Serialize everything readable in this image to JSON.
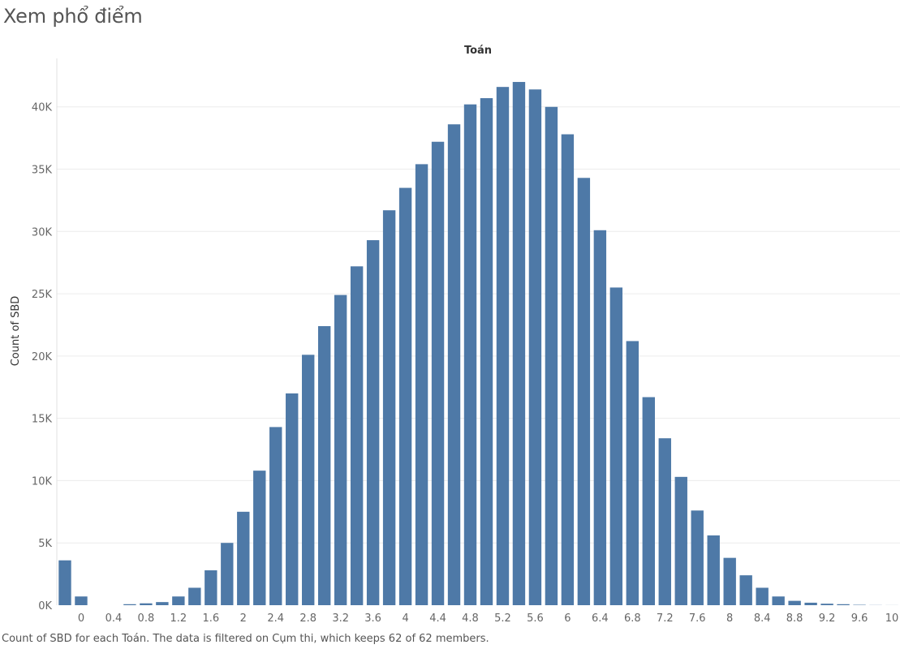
{
  "page_title": "Xem phổ điểm",
  "footer_note": "Count of SBD for each Toán. The data is filtered on Cụm thi, which keeps 62 of 62 members.",
  "chart_data": {
    "type": "bar",
    "title": "Toán",
    "xlabel": "",
    "ylabel": "Count of SBD",
    "ylim": [
      0,
      43500
    ],
    "yticks": [
      0,
      5000,
      10000,
      15000,
      20000,
      25000,
      30000,
      35000,
      40000
    ],
    "ytick_labels": [
      "0K",
      "5K",
      "10K",
      "15K",
      "20K",
      "25K",
      "30K",
      "35K",
      "40K"
    ],
    "xtick_labels": [
      "0",
      "0.4",
      "0.8",
      "1.2",
      "1.6",
      "2",
      "2.4",
      "2.8",
      "3.2",
      "3.6",
      "4",
      "4.4",
      "4.8",
      "5.2",
      "5.6",
      "6",
      "6.4",
      "6.8",
      "7.2",
      "7.6",
      "8",
      "8.4",
      "8.8",
      "9.2",
      "9.6",
      "10"
    ],
    "grid": true,
    "bar_color": "#4e79a7",
    "categories": [
      "-0.2",
      "0",
      "0.2",
      "0.4",
      "0.6",
      "0.8",
      "1",
      "1.2",
      "1.4",
      "1.6",
      "1.8",
      "2",
      "2.2",
      "2.4",
      "2.6",
      "2.8",
      "3",
      "3.2",
      "3.4",
      "3.6",
      "3.8",
      "4",
      "4.2",
      "4.4",
      "4.6",
      "4.8",
      "5",
      "5.2",
      "5.4",
      "5.6",
      "5.8",
      "6",
      "6.2",
      "6.4",
      "6.6",
      "6.8",
      "7",
      "7.2",
      "7.4",
      "7.6",
      "7.8",
      "8",
      "8.2",
      "8.4",
      "8.6",
      "8.8",
      "9",
      "9.2",
      "9.4",
      "9.6",
      "9.8",
      "10"
    ],
    "values": [
      3600,
      700,
      0,
      0,
      80,
      150,
      250,
      700,
      1400,
      2800,
      5000,
      7500,
      10800,
      14300,
      17000,
      20100,
      22400,
      24900,
      27200,
      29300,
      31700,
      33500,
      35400,
      37200,
      38600,
      40200,
      40700,
      41600,
      42000,
      41400,
      40000,
      37800,
      34300,
      30100,
      25500,
      21200,
      16700,
      13400,
      10300,
      7600,
      5600,
      3800,
      2400,
      1400,
      700,
      350,
      200,
      120,
      80,
      30,
      10,
      5
    ]
  }
}
